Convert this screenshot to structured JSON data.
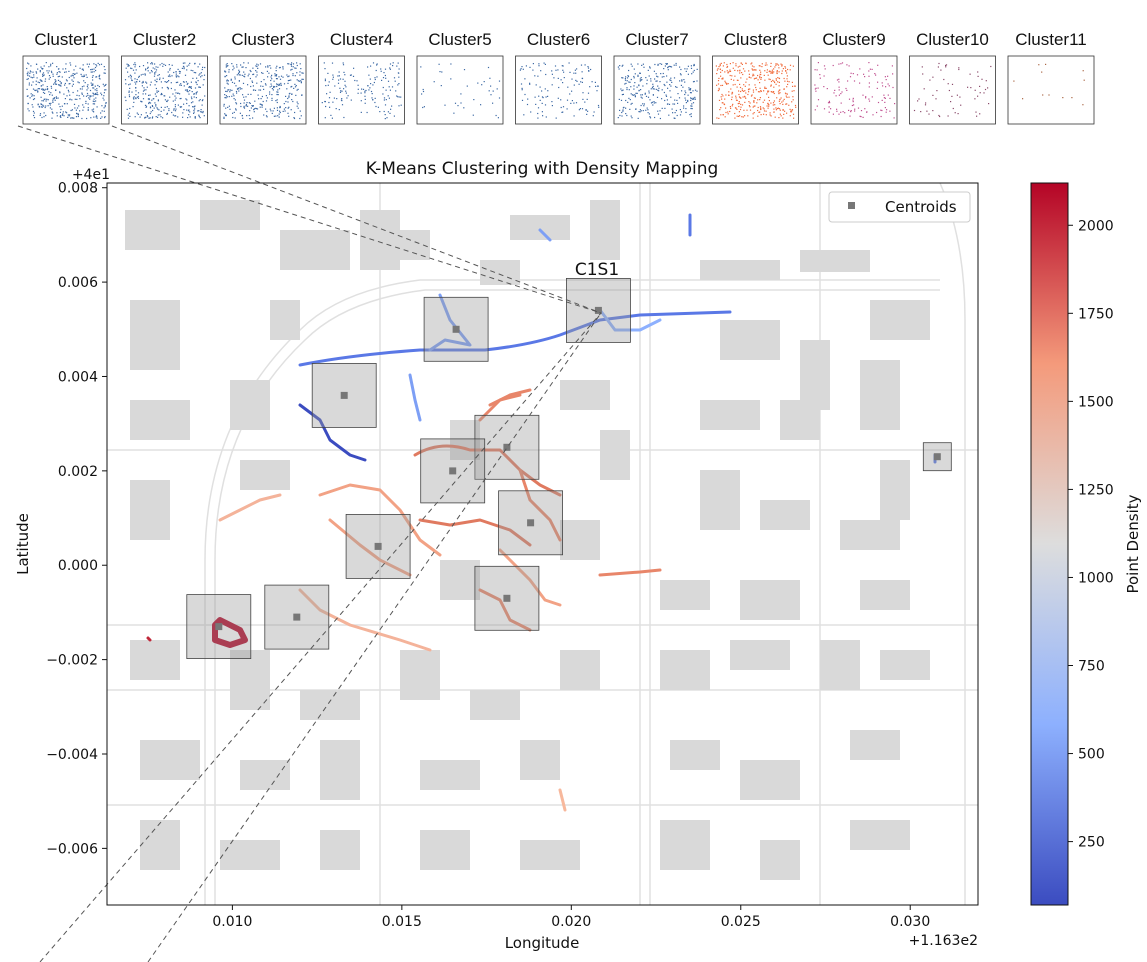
{
  "thumbnails": [
    "Cluster1",
    "Cluster2",
    "Cluster3",
    "Cluster4",
    "Cluster5",
    "Cluster6",
    "Cluster7",
    "Cluster8",
    "Cluster9",
    "Cluster10",
    "Cluster11"
  ],
  "chart_data": {
    "type": "scatter",
    "title": "K-Means Clustering with Density Mapping",
    "xlabel": "Longitude",
    "ylabel": "Latitude",
    "x_offset_label": "+1.163e2",
    "y_offset_label": "+4e1",
    "xlim": [
      0.0063,
      0.032
    ],
    "ylim": [
      -0.0072,
      0.0081
    ],
    "xticks": [
      0.01,
      0.015,
      0.02,
      0.025,
      0.03
    ],
    "xtick_labels": [
      "0.010",
      "0.015",
      "0.020",
      "0.025",
      "0.030"
    ],
    "yticks": [
      0.008,
      0.006,
      0.004,
      0.002,
      0.0,
      -0.002,
      -0.004,
      -0.006
    ],
    "ytick_labels": [
      "0.008",
      "0.006",
      "0.004",
      "0.002",
      "0.000",
      "−0.002",
      "−0.004",
      "−0.006"
    ],
    "legend": {
      "entries": [
        "Centroids"
      ],
      "placement": "top-right"
    },
    "annotation": "C1S1",
    "colorbar": {
      "label": "Point Density",
      "range": [
        70,
        2120
      ],
      "ticks": [
        250,
        500,
        750,
        1000,
        1250,
        1500,
        1750,
        2000
      ],
      "tick_labels": [
        "250",
        "500",
        "750",
        "1000",
        "1250",
        "1500",
        "1750",
        "2000"
      ],
      "colormap": "coolwarm",
      "colors": [
        "#3b4cc0",
        "#8db0fe",
        "#dddddd",
        "#f49a7b",
        "#b40426"
      ]
    },
    "centroids": [
      {
        "x": 0.0208,
        "y": 0.0054,
        "density": 600
      },
      {
        "x": 0.0166,
        "y": 0.005,
        "density": 800
      },
      {
        "x": 0.0133,
        "y": 0.0036,
        "density": 300
      },
      {
        "x": 0.0181,
        "y": 0.0025,
        "density": 1600
      },
      {
        "x": 0.0165,
        "y": 0.002,
        "density": 1650
      },
      {
        "x": 0.0188,
        "y": 0.0009,
        "density": 1650
      },
      {
        "x": 0.0143,
        "y": 0.0004,
        "density": 1450
      },
      {
        "x": 0.0181,
        "y": -0.0007,
        "density": 1550
      },
      {
        "x": 0.0119,
        "y": -0.0011,
        "density": 1500
      },
      {
        "x": 0.0096,
        "y": -0.0013,
        "density": 2050
      },
      {
        "x": 0.0308,
        "y": 0.0023,
        "density": 700
      }
    ]
  }
}
